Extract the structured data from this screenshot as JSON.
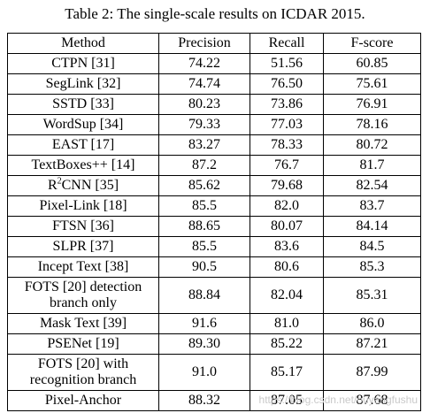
{
  "caption": "Table 2: The single-scale results on ICDAR 2015.",
  "table": {
    "headers": [
      "Method",
      "Precision",
      "Recall",
      "F-score"
    ],
    "rows": [
      {
        "method": "CTPN [31]",
        "precision": "74.22",
        "recall": "51.56",
        "fscore": "60.85"
      },
      {
        "method": "SegLink [32]",
        "precision": "74.74",
        "recall": "76.50",
        "fscore": "75.61"
      },
      {
        "method": "SSTD [33]",
        "precision": "80.23",
        "recall": "73.86",
        "fscore": "76.91"
      },
      {
        "method": "WordSup [34]",
        "precision": "79.33",
        "recall": "77.03",
        "fscore": "78.16"
      },
      {
        "method": "EAST [17]",
        "precision": "83.27",
        "recall": "78.33",
        "fscore": "80.72"
      },
      {
        "method": "TextBoxes++ [14]",
        "precision": "87.2",
        "recall": "76.7",
        "fscore": "81.7"
      },
      {
        "method_prefix": "R",
        "method_sup": "2",
        "method_suffix": "CNN [35]",
        "precision": "85.62",
        "recall": "79.68",
        "fscore": "82.54"
      },
      {
        "method": "Pixel-Link [18]",
        "precision": "85.5",
        "recall": "82.0",
        "fscore": "83.7"
      },
      {
        "method": "FTSN [36]",
        "precision": "88.65",
        "recall": "80.07",
        "fscore": "84.14"
      },
      {
        "method": "SLPR [37]",
        "precision": "85.5",
        "recall": "83.6",
        "fscore": "84.5"
      },
      {
        "method": "Incept Text [38]",
        "precision": "90.5",
        "recall": "80.6",
        "fscore": "85.3"
      },
      {
        "method_line1": "FOTS [20] detection",
        "method_line2": "branch only",
        "precision": "88.84",
        "recall": "82.04",
        "fscore": "85.31"
      },
      {
        "method": "Mask Text [39]",
        "precision": "91.6",
        "recall": "81.0",
        "fscore": "86.0"
      },
      {
        "method": "PSENet [19]",
        "precision": "89.30",
        "recall": "85.22",
        "fscore": "87.21"
      },
      {
        "method_line1": "FOTS [20] with",
        "method_line2": "recognition branch",
        "precision": "91.0",
        "recall": "85.17",
        "fscore": "87.99"
      },
      {
        "method": "Pixel-Anchor",
        "precision": "88.32",
        "recall": "87.05",
        "fscore": "87.68"
      }
    ]
  },
  "watermark": "https://blog.csdn.net/ouyangfushu"
}
